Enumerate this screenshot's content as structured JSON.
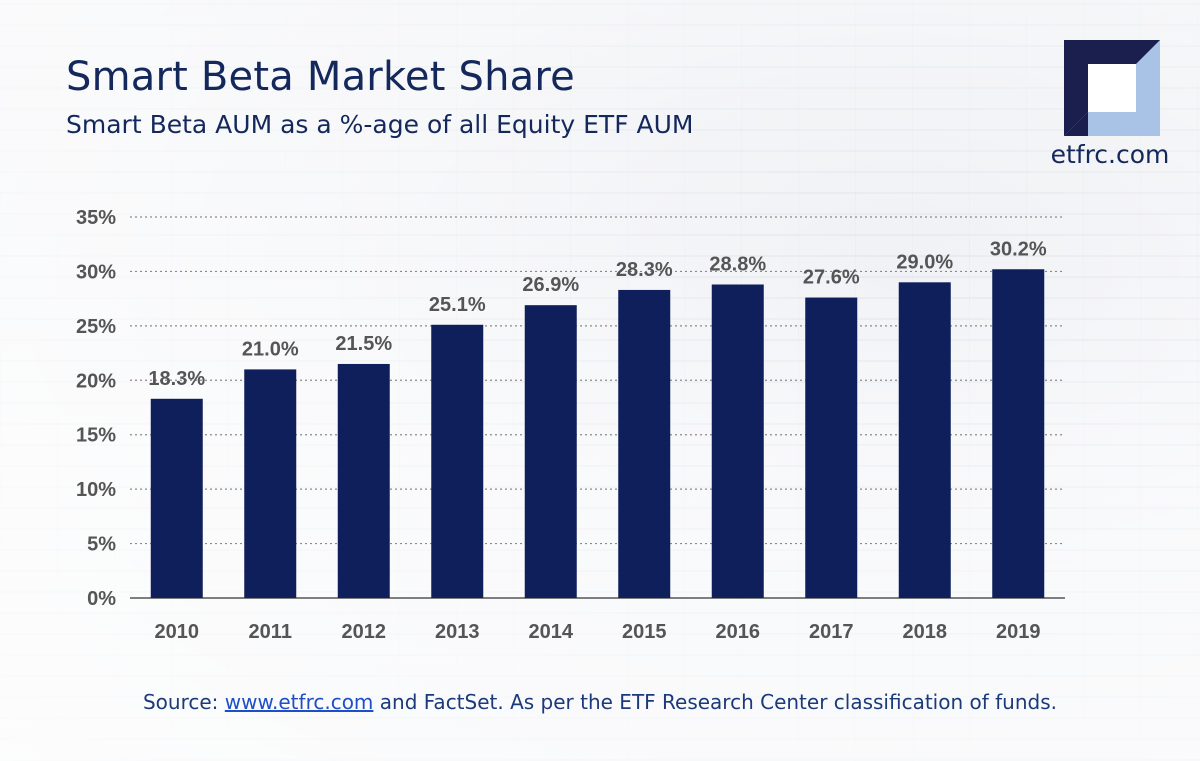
{
  "header": {
    "title": "Smart Beta Market Share",
    "subtitle": "Smart Beta AUM as a %-age of all Equity ETF AUM"
  },
  "logo": {
    "text": "etfrc.com",
    "icon": "etfrc-logo-icon"
  },
  "footer": {
    "prefix": "Source: ",
    "link": "www.etfrc.com",
    "suffix": " and FactSet. As per the ETF Research Center classification of funds."
  },
  "colors": {
    "bar": "#0e1f5b",
    "text": "#14285c",
    "label": "#555555",
    "grid": "#8a8a8a"
  },
  "chart_data": {
    "type": "bar",
    "categories": [
      "2010",
      "2011",
      "2012",
      "2013",
      "2014",
      "2015",
      "2016",
      "2017",
      "2018",
      "2019"
    ],
    "values": [
      18.3,
      21.0,
      21.5,
      25.1,
      26.9,
      28.3,
      28.8,
      27.6,
      29.0,
      30.2
    ],
    "data_labels": [
      "18.3%",
      "21.0%",
      "21.5%",
      "25.1%",
      "26.9%",
      "28.3%",
      "28.8%",
      "27.6%",
      "29.0%",
      "30.2%"
    ],
    "yticks": [
      "0%",
      "5%",
      "10%",
      "15%",
      "20%",
      "25%",
      "30%",
      "35%"
    ],
    "ylim": [
      0,
      35
    ],
    "grid": true
  }
}
